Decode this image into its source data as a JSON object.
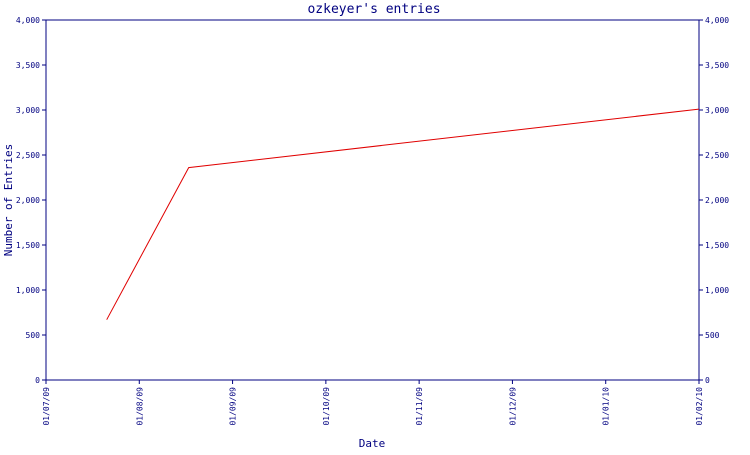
{
  "chart_data": {
    "type": "line",
    "title": "ozkeyer's entries",
    "xlabel": "Date",
    "ylabel": "Number of Entries",
    "x_ticks": [
      "01/07/09",
      "01/08/09",
      "01/09/09",
      "01/10/09",
      "01/11/09",
      "01/12/09",
      "01/01/10",
      "01/02/10"
    ],
    "y_ticks": [
      "0",
      "500",
      "1,000",
      "1,500",
      "2,000",
      "2,500",
      "3,000",
      "3,500",
      "4,000"
    ],
    "ylim": [
      0,
      4000
    ],
    "xlim": [
      "2009-07-01",
      "2010-02-01"
    ],
    "series": [
      {
        "color": "#e00000",
        "points": [
          {
            "x": "2009-07-21",
            "y": 670
          },
          {
            "x": "2009-08-17",
            "y": 2360
          },
          {
            "x": "2010-02-01",
            "y": 3010
          }
        ]
      }
    ],
    "grid": false,
    "legend": "none",
    "axis_color": "#000080"
  }
}
